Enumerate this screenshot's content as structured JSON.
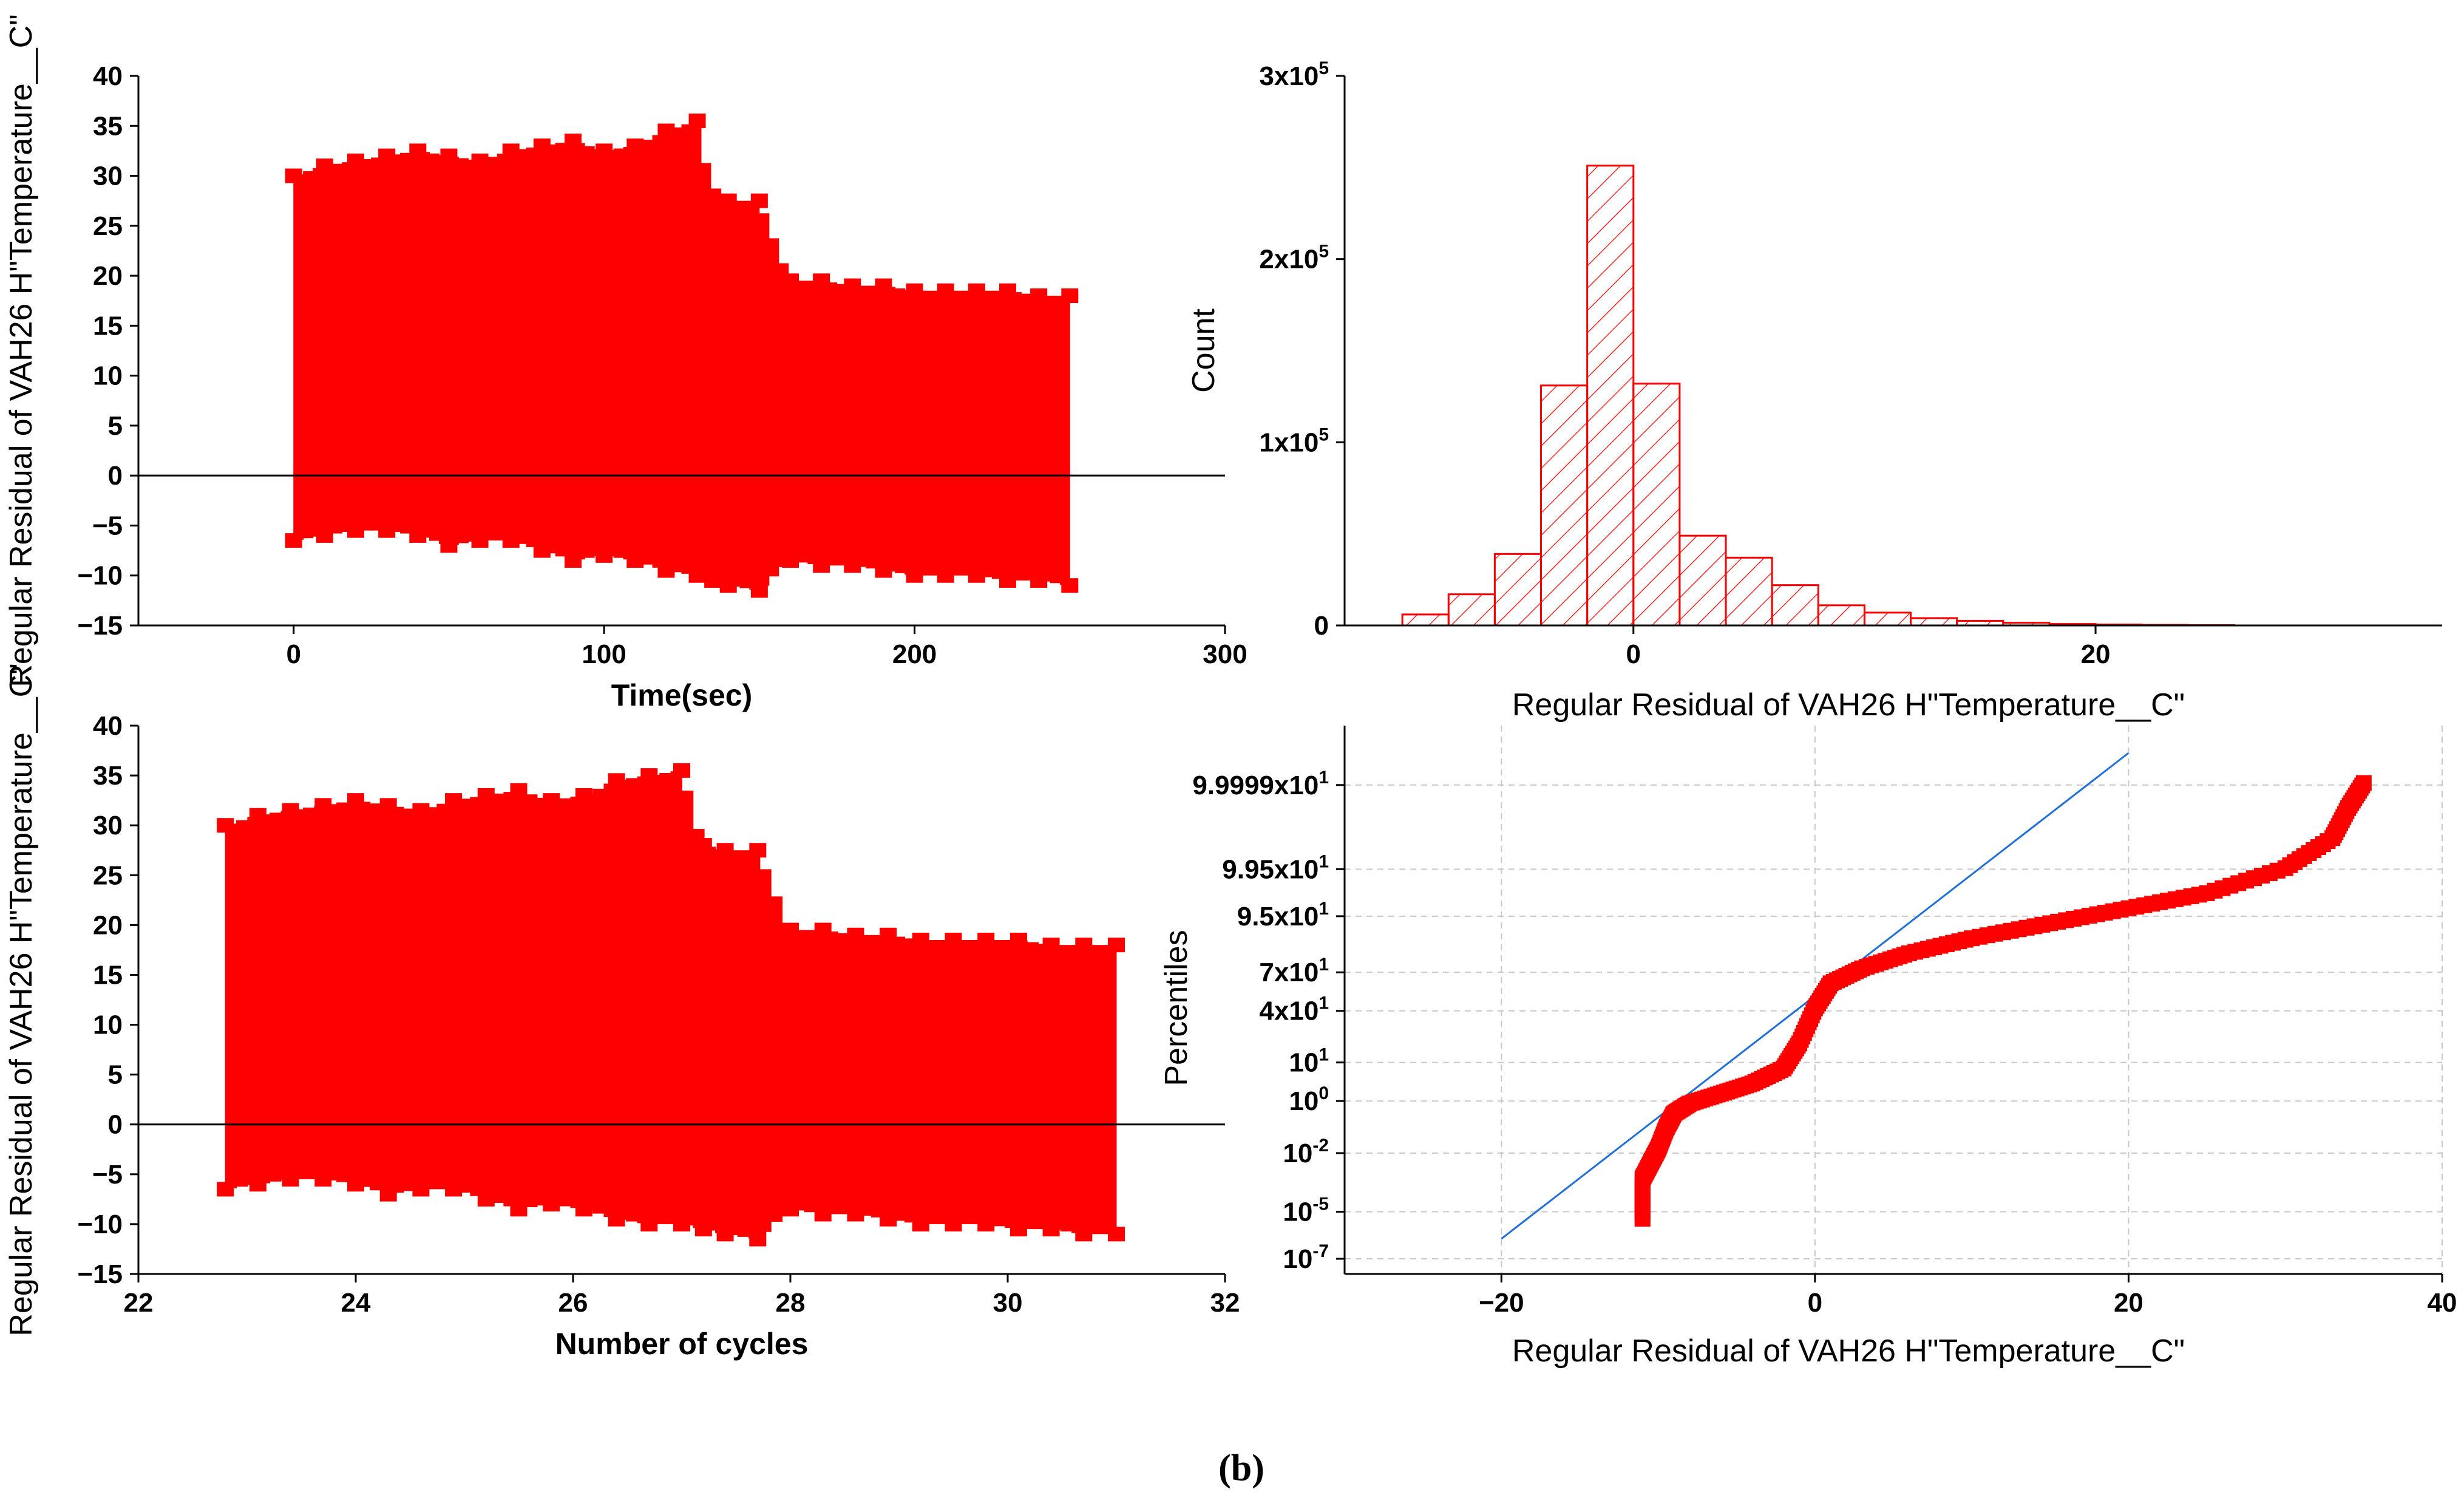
{
  "caption": "(b)",
  "colors": {
    "residual": "#ff0000",
    "fit_line": "#1f6fd6",
    "grid": "#c8c8c8",
    "zero_line": "#000000"
  },
  "chart_data": [
    {
      "id": "residual_vs_time",
      "type": "scatter",
      "title": "",
      "xlabel": "Time(sec)",
      "ylabel": "Regular Residual of VAH26 H\"Temperature__C\"",
      "xlim": [
        -50,
        300
      ],
      "ylim": [
        -15,
        40
      ],
      "xticks": [
        0,
        100,
        200,
        300
      ],
      "yticks": [
        -15,
        -10,
        -5,
        0,
        5,
        10,
        15,
        20,
        25,
        30,
        35,
        40
      ],
      "reference_line_y": 0,
      "series": [
        {
          "name": "upper envelope",
          "x": [
            0,
            10,
            20,
            30,
            40,
            50,
            60,
            70,
            80,
            90,
            100,
            110,
            120,
            130,
            135,
            140,
            150,
            160,
            170,
            180,
            190,
            200,
            210,
            220,
            230,
            240,
            250
          ],
          "y": [
            30,
            31,
            31.5,
            32,
            32.5,
            32,
            31.5,
            32.5,
            33,
            33.5,
            32.5,
            33,
            34.5,
            35.5,
            28,
            27.5,
            27.5,
            19.5,
            19.5,
            19,
            19,
            18.5,
            18.5,
            18.5,
            18.5,
            18,
            18
          ]
        },
        {
          "name": "lower envelope",
          "x": [
            0,
            10,
            20,
            30,
            40,
            50,
            60,
            70,
            80,
            90,
            100,
            110,
            120,
            130,
            135,
            140,
            150,
            160,
            170,
            180,
            190,
            200,
            210,
            220,
            230,
            240,
            250
          ],
          "y": [
            -6.5,
            -6,
            -5.5,
            -5.5,
            -6,
            -7,
            -6.5,
            -6.5,
            -7.5,
            -8.5,
            -8,
            -8.5,
            -9.5,
            -10,
            -10.5,
            -11,
            -11.5,
            -8.5,
            -9,
            -9,
            -9.5,
            -10,
            -10,
            -10,
            -10.5,
            -10.5,
            -11
          ]
        }
      ]
    },
    {
      "id": "residual_histogram",
      "type": "bar",
      "title": "",
      "xlabel": "Regular Residual of VAH26 H\"Temperature__C\"",
      "ylabel": "Count",
      "xlim": [
        -12.5,
        35
      ],
      "ylim": [
        0,
        300000
      ],
      "xticks": [
        0,
        20
      ],
      "yticks": [
        {
          "value": 0,
          "label": "0",
          "sup": ""
        },
        {
          "value": 100000,
          "label": "1x10",
          "sup": "5"
        },
        {
          "value": 200000,
          "label": "2x10",
          "sup": "5"
        },
        {
          "value": 300000,
          "label": "3x10",
          "sup": "5"
        }
      ],
      "bin_width": 2,
      "bin_starts": [
        -10,
        -8,
        -6,
        -4,
        -2,
        0,
        2,
        4,
        6,
        8,
        10,
        12,
        14,
        16,
        18,
        20,
        22,
        24
      ],
      "values": [
        6000,
        17000,
        39000,
        131000,
        251000,
        132000,
        49000,
        37000,
        22000,
        11000,
        7000,
        4000,
        2500,
        1500,
        800,
        500,
        300,
        150
      ]
    },
    {
      "id": "residual_vs_cycles",
      "type": "scatter",
      "title": "",
      "xlabel": "Number of cycles",
      "ylabel": "Regular Residual of VAH26 H\"Temperature__C\"",
      "xlim": [
        22,
        32
      ],
      "ylim": [
        -15,
        40
      ],
      "xticks": [
        22,
        24,
        26,
        28,
        30,
        32
      ],
      "yticks": [
        -15,
        -10,
        -5,
        0,
        5,
        10,
        15,
        20,
        25,
        30,
        35,
        40
      ],
      "reference_line_y": 0,
      "series": [
        {
          "name": "upper envelope",
          "x": [
            22.8,
            23.1,
            23.4,
            23.7,
            24.0,
            24.3,
            24.6,
            24.9,
            25.2,
            25.5,
            25.8,
            26.1,
            26.4,
            26.7,
            27.0,
            27.2,
            27.4,
            27.7,
            28.0,
            28.3,
            28.6,
            28.9,
            29.2,
            29.5,
            29.8,
            30.1,
            30.4,
            30.7,
            31.0
          ],
          "y": [
            30,
            31,
            31.5,
            32,
            32.5,
            32,
            31.5,
            32.5,
            33,
            33.5,
            32.5,
            33,
            34.5,
            35,
            35.5,
            28,
            27.5,
            27.5,
            19.5,
            19.5,
            19,
            19,
            18.5,
            18.5,
            18.5,
            18.5,
            18,
            18,
            18
          ]
        },
        {
          "name": "lower envelope",
          "x": [
            22.8,
            23.1,
            23.4,
            23.7,
            24.0,
            24.3,
            24.6,
            24.9,
            25.2,
            25.5,
            25.8,
            26.1,
            26.4,
            26.7,
            27.0,
            27.2,
            27.4,
            27.7,
            28.0,
            28.3,
            28.6,
            28.9,
            29.2,
            29.5,
            29.8,
            30.1,
            30.4,
            30.7,
            31.0
          ],
          "y": [
            -6.5,
            -6,
            -5.5,
            -5.5,
            -6,
            -7,
            -6.5,
            -6.5,
            -7.5,
            -8.5,
            -8,
            -8.5,
            -9.5,
            -10,
            -10,
            -10.5,
            -11,
            -11.5,
            -8.5,
            -9,
            -9,
            -9.5,
            -10,
            -10,
            -10,
            -10.5,
            -10.5,
            -11,
            -11
          ]
        }
      ]
    },
    {
      "id": "normal_probability_plot",
      "type": "scatter",
      "title": "",
      "xlabel": "Regular Residual of VAH26 H\"Temperature__C\"",
      "ylabel": "Percentiles",
      "xlim": [
        -30,
        40
      ],
      "xticks": [
        -20,
        0,
        20,
        40
      ],
      "grid": true,
      "ytick_labels": [
        {
          "z": -5.2,
          "label": "10",
          "sup": "-7"
        },
        {
          "z": -4.26,
          "label": "10",
          "sup": "-5"
        },
        {
          "z": -3.09,
          "label": "10",
          "sup": "-2"
        },
        {
          "z": -2.05,
          "label": "10",
          "sup": "0"
        },
        {
          "z": -1.28,
          "label": "10",
          "sup": "1"
        },
        {
          "z": -0.25,
          "label": "4x10",
          "sup": "1"
        },
        {
          "z": 0.52,
          "label": "7x10",
          "sup": "1"
        },
        {
          "z": 1.64,
          "label": "9.5x10",
          "sup": "1"
        },
        {
          "z": 2.58,
          "label": "9.95x10",
          "sup": "1"
        },
        {
          "z": 4.26,
          "label": "9.9999x10",
          "sup": "1"
        }
      ],
      "fit_line": {
        "x": [
          -20,
          20
        ],
        "z": [
          -4.8,
          4.9
        ]
      },
      "series": [
        {
          "name": "residual quantiles",
          "residual": [
            -11,
            -11,
            -10.5,
            -10,
            -9.5,
            -9,
            -8,
            -6,
            -4,
            -2,
            -1,
            0,
            1,
            3,
            6,
            10,
            15,
            20,
            25,
            30,
            33,
            34,
            35
          ],
          "z": [
            -4.4,
            -3.6,
            -3.3,
            -3.0,
            -2.6,
            -2.3,
            -2.1,
            -1.9,
            -1.7,
            -1.4,
            -0.9,
            -0.2,
            0.3,
            0.6,
            0.9,
            1.2,
            1.5,
            1.8,
            2.1,
            2.6,
            3.2,
            3.8,
            4.3
          ]
        }
      ]
    }
  ]
}
